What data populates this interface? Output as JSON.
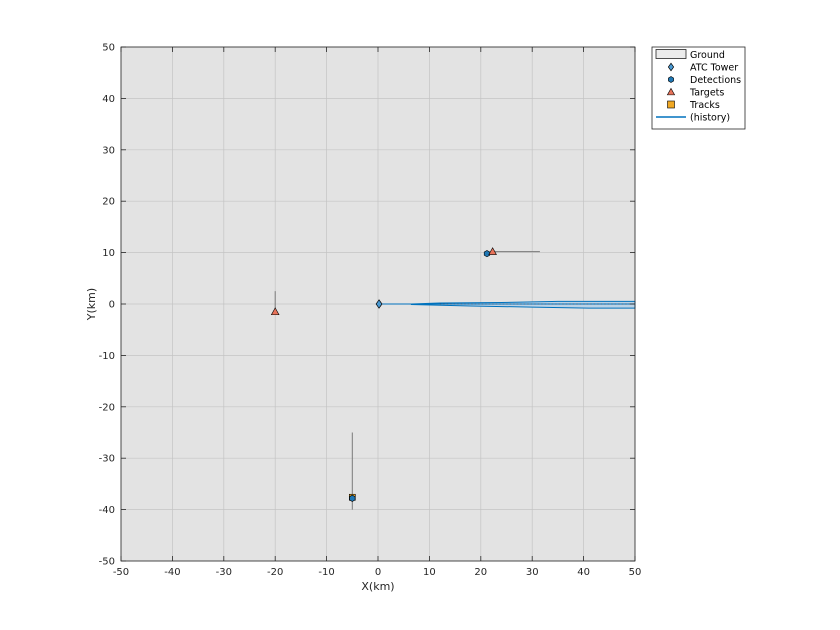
{
  "chart_data": {
    "type": "scatter",
    "xlabel": "X(km)",
    "ylabel": "Y(km)",
    "xlim": [
      -50,
      50
    ],
    "ylim": [
      -50,
      50
    ],
    "xticks": [
      -50,
      -40,
      -30,
      -20,
      -10,
      0,
      10,
      20,
      30,
      40,
      50
    ],
    "yticks": [
      -50,
      -40,
      -30,
      -20,
      -10,
      0,
      10,
      20,
      30,
      40,
      50
    ],
    "grid": true,
    "legend_position": "top-right outside",
    "colors": {
      "plot_background": "#e3e3e3",
      "grid": "#c4c4c4",
      "ground_fill": "#ececec",
      "tower": "#4a9ad4",
      "detection": "#1f77b4",
      "target": "#e8735a",
      "track": "#f0a824",
      "history": "#0072bd",
      "velocity": "#7a7a7a"
    },
    "legend": [
      {
        "label": "Ground",
        "icon": "ground-rect-icon"
      },
      {
        "label": "ATC Tower",
        "icon": "tower-diamond-icon"
      },
      {
        "label": "Detections",
        "icon": "detection-hexagon-icon"
      },
      {
        "label": "Targets",
        "icon": "target-triangle-icon"
      },
      {
        "label": "Tracks",
        "icon": "track-square-icon"
      },
      {
        "label": "(history)",
        "icon": "history-line-icon"
      }
    ],
    "series": [
      {
        "name": "ATC Tower",
        "points": [
          {
            "x": 0.2,
            "y": 0
          }
        ]
      },
      {
        "name": "Detections",
        "points": [
          {
            "x": 21.2,
            "y": 9.8
          },
          {
            "x": -5,
            "y": -37.8
          }
        ]
      },
      {
        "name": "Targets",
        "points": [
          {
            "x": -20,
            "y": -1.5
          },
          {
            "x": 22.3,
            "y": 10.2
          }
        ]
      },
      {
        "name": "Tracks",
        "points": [
          {
            "x": -5,
            "y": -37.6
          }
        ]
      }
    ],
    "velocity_vectors": [
      {
        "x": [
          -20,
          -20
        ],
        "y": [
          -1.5,
          2.5
        ]
      },
      {
        "x": [
          22.3,
          31.5
        ],
        "y": [
          10.2,
          10.2
        ]
      },
      {
        "x": [
          -5,
          -5
        ],
        "y": [
          -40,
          -25
        ]
      }
    ],
    "history_line": {
      "x": [
        0.5,
        50
      ],
      "y": [
        0,
        0
      ]
    },
    "history_band": {
      "upper": [
        {
          "x": 6.5,
          "y": 0
        },
        {
          "x": 12,
          "y": 0.2
        },
        {
          "x": 24,
          "y": 0.3
        },
        {
          "x": 35,
          "y": 0.5
        },
        {
          "x": 50,
          "y": 0.5
        }
      ],
      "lower": [
        {
          "x": 6.5,
          "y": -0.1
        },
        {
          "x": 18,
          "y": -0.4
        },
        {
          "x": 30,
          "y": -0.6
        },
        {
          "x": 41,
          "y": -0.8
        },
        {
          "x": 50,
          "y": -0.8
        }
      ]
    }
  }
}
